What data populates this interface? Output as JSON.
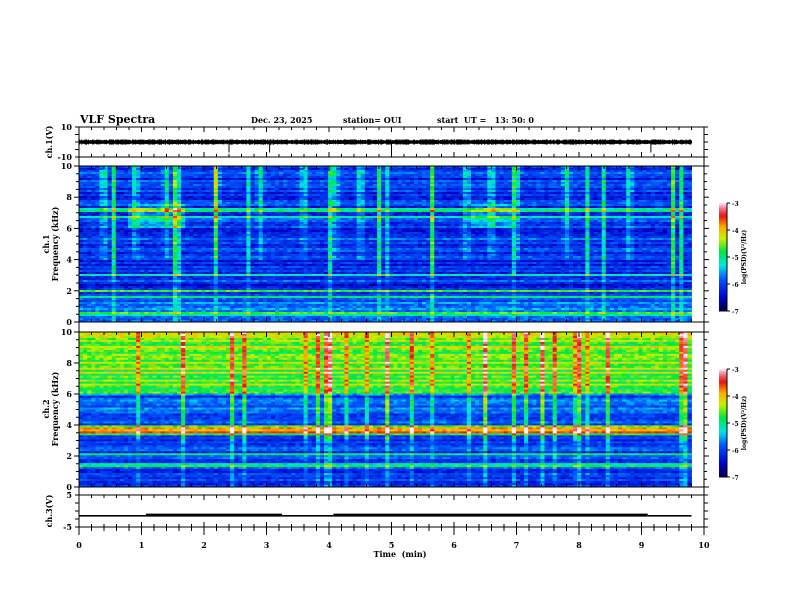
{
  "header": {
    "title": "VLF Spectra",
    "date": "Dec. 23, 2025",
    "station": "station= OUI",
    "start": "start  UT =   13: 50: 0"
  },
  "chart_data": {
    "type": "heatmap",
    "xlabel": "Time  (min)",
    "xlim": [
      0,
      10
    ],
    "x_ticks": [
      "0",
      "1",
      "2",
      "3",
      "4",
      "5",
      "6",
      "7",
      "8",
      "9",
      "10"
    ],
    "data_end_min": 9.8,
    "panels": [
      {
        "id": "ch1-waveform",
        "type": "line",
        "ylabel": "ch.1(V)",
        "ylim": [
          -10,
          10
        ],
        "y_ticks": [
          "10",
          "-10"
        ],
        "baseline_v": 0,
        "noise_amp_v": 1.5,
        "spikes_min": [
          2.4,
          3.05,
          5.0,
          9.15
        ]
      },
      {
        "id": "ch1-spectrogram",
        "type": "heatmap",
        "ylabel_line1": "ch.1",
        "ylabel_line2": "Frequency  (kHz)",
        "ylim": [
          0,
          10
        ],
        "y_ticks": [
          "0",
          "2",
          "4",
          "6",
          "8",
          "10"
        ],
        "colorbar": {
          "label": "log(PSD)(V²/Hz)",
          "range": [
            -7,
            -3
          ],
          "ticks": [
            "-3",
            "-4",
            "-5",
            "-6",
            "-7"
          ]
        },
        "bright_bands_khz": [
          7.2,
          6.7,
          3.0,
          2.0,
          1.6,
          0.5
        ],
        "burst_times_min": [
          0.4,
          0.9,
          1.4,
          2.2,
          2.9,
          3.6,
          4.1,
          4.5,
          6.2,
          6.6,
          7.0,
          7.8,
          8.8
        ]
      },
      {
        "id": "ch2-spectrogram",
        "type": "heatmap",
        "ylabel_line1": "ch.2",
        "ylabel_line2": "Frequency  (kHz)",
        "ylim": [
          0,
          10
        ],
        "y_ticks": [
          "0",
          "2",
          "4",
          "6",
          "8",
          "10"
        ],
        "colorbar": {
          "label": "log(PSD)(V²/Hz)",
          "range": [
            -7,
            -3
          ],
          "ticks": [
            "-3",
            "-4",
            "-5",
            "-6",
            "-7"
          ]
        },
        "bright_bands_khz": [
          3.7,
          3.5,
          2.1,
          1.4
        ],
        "high_level_above_khz": 6
      },
      {
        "id": "ch3-waveform",
        "type": "line",
        "ylabel": "ch.3(V)",
        "ylim": [
          -5,
          5
        ],
        "y_ticks": [
          "5",
          "-5"
        ],
        "segments": [
          {
            "t0": 0.0,
            "t1": 1.07,
            "v": -1.5,
            "thick": false
          },
          {
            "t0": 1.07,
            "t1": 3.25,
            "v": -1.3,
            "thick": true
          },
          {
            "t0": 3.25,
            "t1": 4.07,
            "v": -1.5,
            "thick": false
          },
          {
            "t0": 4.07,
            "t1": 9.1,
            "v": -1.3,
            "thick": true
          },
          {
            "t0": 9.1,
            "t1": 9.8,
            "v": -1.5,
            "thick": false
          }
        ]
      }
    ]
  }
}
